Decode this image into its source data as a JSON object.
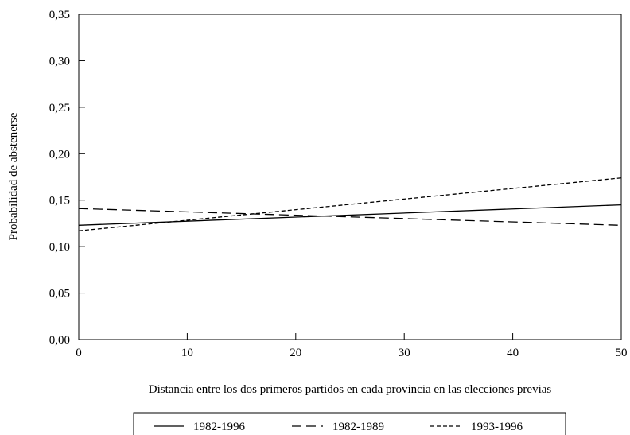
{
  "chart_data": {
    "type": "line",
    "title": "",
    "xlabel": "Distancia entre los dos primeros partidos en cada provincia en las elecciones previas",
    "ylabel": "Probabilidad de abstenerse",
    "xlim": [
      0,
      50
    ],
    "ylim": [
      0,
      0.35
    ],
    "x_ticks": [
      0,
      10,
      20,
      30,
      40,
      50
    ],
    "x_tick_labels": [
      "0",
      "10",
      "20",
      "30",
      "40",
      "50"
    ],
    "y_ticks": [
      0,
      0.05,
      0.1,
      0.15,
      0.2,
      0.25,
      0.3,
      0.35
    ],
    "y_tick_labels": [
      "0,00",
      "0,05",
      "0,10",
      "0,15",
      "0,20",
      "0,25",
      "0,30",
      "0,35"
    ],
    "grid": false,
    "legend_position": "bottom",
    "series": [
      {
        "name": "1982-1996",
        "style": "solid",
        "x": [
          0,
          50
        ],
        "y": [
          0.123,
          0.145
        ]
      },
      {
        "name": "1982-1989",
        "style": "long-dash",
        "x": [
          0,
          50
        ],
        "y": [
          0.141,
          0.123
        ]
      },
      {
        "name": "1993-1996",
        "style": "short-dash",
        "x": [
          0,
          50
        ],
        "y": [
          0.117,
          0.174
        ]
      }
    ],
    "line_color": "#000000"
  }
}
